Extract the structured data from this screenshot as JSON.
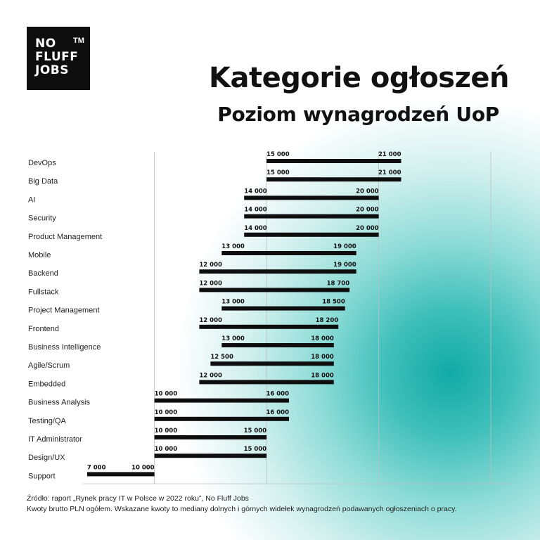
{
  "logo": {
    "lines": [
      "NO",
      "FLUFF",
      "JOBS"
    ],
    "tm": "TM"
  },
  "header": {
    "title": "Kategorie ogłoszeń",
    "subtitle": "Poziom wynagrodzeń UoP"
  },
  "footer": {
    "source": "Źródło: raport „Rynek pracy IT w Polsce w 2022 roku”, No Fluff Jobs",
    "note": "Kwoty brutto PLN ogółem. Wskazane kwoty to mediany dolnych i górnych widełek wynagrodzeń podawanych ogłoszeniach o pracy."
  },
  "colors": {
    "bar": "#0e0e0e",
    "grid": "#bfbfbf",
    "accent": "#12aaa5"
  },
  "chart_data": {
    "type": "bar",
    "orientation": "horizontal-range",
    "grid": true,
    "xlim": [
      6000,
      26000
    ],
    "categories": [
      "DevOps",
      "Big Data",
      "AI",
      "Security",
      "Product Management",
      "Mobile",
      "Backend",
      "Fullstack",
      "Project Management",
      "Frontend",
      "Business Intelligence",
      "Agile/Scrum",
      "Embedded",
      "Business Analysis",
      "Testing/QA",
      "IT Administrator",
      "Design/UX",
      "Support"
    ],
    "series": [
      {
        "values": [
          15000,
          15000,
          14000,
          14000,
          14000,
          13000,
          12000,
          12000,
          13000,
          12000,
          13000,
          12500,
          12000,
          10000,
          10000,
          10000,
          10000,
          7000
        ],
        "labels": [
          "15 000",
          "15 000",
          "14 000",
          "14 000",
          "14 000",
          "13 000",
          "12 000",
          "12 000",
          "13 000",
          "12 000",
          "13 000",
          "12 500",
          "12 000",
          "10 000",
          "10 000",
          "10 000",
          "10 000",
          "7 000"
        ]
      },
      {
        "values": [
          21000,
          21000,
          20000,
          20000,
          20000,
          19000,
          19000,
          18700,
          18500,
          18200,
          18000,
          18000,
          18000,
          16000,
          16000,
          15000,
          15000,
          10000
        ],
        "labels": [
          "21 000",
          "21 000",
          "20 000",
          "20 000",
          "20 000",
          "19 000",
          "19 000",
          "18 700",
          "18 500",
          "18 200",
          "18 000",
          "18 000",
          "18 000",
          "16 000",
          "16 000",
          "15 000",
          "15 000",
          "10 000"
        ]
      }
    ]
  }
}
